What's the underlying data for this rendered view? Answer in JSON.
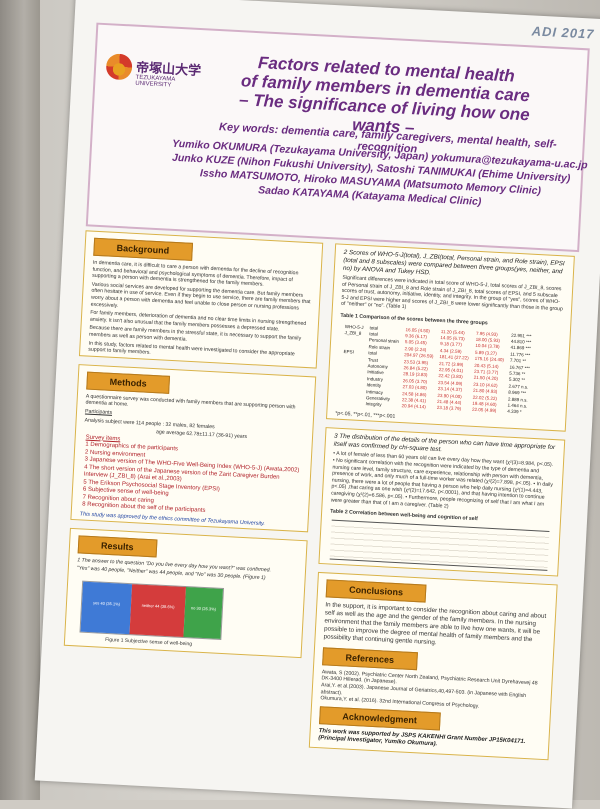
{
  "header": {
    "adi": "ADI 2017",
    "logo_jp": "帝塚山大学",
    "logo_en": "TEZUKAYAMA UNIVERSITY",
    "title_l1": "Factors related to mental health",
    "title_l2": "of family members in dementia care",
    "title_l3": "– The significance of living how one wants –",
    "keywords": "Key words: dementia care, family caregivers, mental health, self-recognition",
    "author_1": "Yumiko OKUMURA (Tezukayama University, Japan)  yokumura@tezukayama-u.ac.jp",
    "author_2": "Junko KUZE (Nihon Fukushi University), Satoshi TANIMUKAI (Ehime University)",
    "author_3": "Issho MATSUMOTO, Hiroko MASUYAMA (Matsumoto Memory Clinic)",
    "author_4": "Sadao KATAYAMA (Katayama Medical Clinic)"
  },
  "background": {
    "heading": "Background",
    "p1": "In dementia care, it is difficult to care a person with dementia for the decline of recognition function, and behavioral and psychological symptoms of dementia. Therefore, impact of supporting a person with dementia is strengthened for the family members.",
    "p2": "Various social services are developed for supporting the dementia care. But family members often hesitate in use of service. Even if they begin to use service, there are family members that worry about a person with dementia and feel unable to close person or nursing professions excessively.",
    "p3": "For family members, deterioration of dementia and no clear time limits in nursing strengthened anxiety. It isn't also unusual that the family members possesses a depressed state.",
    "p4": "Because there are family members in the stressful state, it is necessary to support the family members as well as person with dementia.",
    "p5": "In this study, factors related to mental health were investigated to consider the appropriate support to family members."
  },
  "methods": {
    "heading": "Methods",
    "p1": "A questionnaire survey was conducted with family members that are supporting person with dementia at home.",
    "participants": "Participants",
    "analysis": "Analysis subject were 114 people : 32 males, 82 females",
    "age": "age average 62.78±11.17 (36-91) years",
    "survey_items": "Survey items",
    "items": [
      "1 Demographics of the participants",
      "2 Nursing environment",
      "3 Japanese version of The WHO-Five Well-Being Index (WHO-5-J) (Awata,2002)",
      "4 The short version of the Japanese version of the Zarit Caregiver Burden Interview (J_ZBI_8) (Arai et al.,2003)",
      "5 The Erikson Psychosocial Stage Inventory (EPSI)",
      "6 Subjective sense of well-being",
      "7 Recognition about caring",
      "8 Recognition about the self of the participants"
    ],
    "ethics": "This study was approved by the ethics committee of Tezukayama University."
  },
  "results": {
    "heading": "Results",
    "q1": "1  The answer to the question \"Do you live every day how you want?\" was confirmed.",
    "q1b": "\"Yes\" was 40 people, \"Neither\" was 44 people, and \"No\" was 30 people. (Figure 1)",
    "figure_caption": "Figure 1   Subjective sense of well-being",
    "chart_segments": [
      {
        "label": "yes 40 (35.1%)",
        "value": 40,
        "color": "#3f7ad6"
      },
      {
        "label": "neither 44 (38.6%)",
        "value": 44,
        "color": "#d43c3c"
      },
      {
        "label": "no 30 (26.3%)",
        "value": 30,
        "color": "#3fa34a"
      }
    ]
  },
  "right": {
    "section2_title": "2  Scores of WHO-5-J(total), J_ZBI(total, Personal strain, and Role strain), EPSI (total and 8 subscales) were compared between three groups(yes, neither, and no) by ANOVA and Tukey HSD.",
    "section2_text": "Significant differences were indicated in total score of WHO-5-J, total scores of J_ZBI_8, scores of Personal strain of J_ZBI_8 and Role strain of J_ZBI_8, total scores of EPSI, and 5 subscale scores of trust, autonomy, initiative, identity, and integrity. In the group of \"yes\", scores of WHO-5-J and EPSI were higher and scores of J_ZBI_8 were lower significantly than those in the group of \"neither\" or \"no\". (Table 1)",
    "table1_caption": "Table 1  Comparison of the scores between the three groups",
    "table1_rows": [
      [
        "WHO-5-J",
        "total",
        "16.05 (4.50)",
        "11.20 (5.44)",
        "7.95 (4.93)",
        "22.951 ***"
      ],
      [
        "J_ZBI_8",
        "total",
        "9.36 (6.17)",
        "14.05 (6.73)",
        "18.00 (5.93)",
        "44.810 ***"
      ],
      [
        "",
        "Personal strain",
        "5.05 (3.45)",
        "9.18 (3.77)",
        "10.04 (3.78)",
        "41.869 ***"
      ],
      [
        "",
        "Role strain",
        "2.90 (2.24)",
        "4.34 (2.59)",
        "5.89 (3.27)",
        "11.776 ***"
      ],
      [
        "EPSI",
        "total",
        "204.97 (26.59)",
        "181.41 (27.22)",
        "175.16 (24.40)",
        "7.701 **"
      ],
      [
        "",
        "Trust",
        "23.53 (3.95)",
        "21.72 (3.99)",
        "20.43 (5.14)",
        "16.767 ***"
      ],
      [
        "",
        "Autonomy",
        "26.84 (5.22)",
        "22.95 (4.01)",
        "23.71 (3.77)",
        "5.736 **"
      ],
      [
        "",
        "Initiative",
        "28.19 (3.83)",
        "22.42 (3.83)",
        "21.50 (4.20)",
        "5.302 **"
      ],
      [
        "",
        "Industry",
        "26.05 (3.70)",
        "23.54 (4.09)",
        "23.10 (4.62)",
        "2.677 n.s."
      ],
      [
        "",
        "Identity",
        "27.03 (4.80)",
        "23.14 (4.37)",
        "21.80 (4.93)",
        "8.969 ***"
      ],
      [
        "",
        "Intimacy",
        "24.58 (4.86)",
        "23.90 (4.00)",
        "22.02 (5.22)",
        "2.889 n.s."
      ],
      [
        "",
        "Generativity",
        "22.38 (4.41)",
        "21.48 (4.44)",
        "19.48 (4.60)",
        "1.464 n.s."
      ],
      [
        "",
        "Integrity",
        "20.94 (4.14)",
        "23.18 (3.79)",
        "22.05 (4.99)",
        "4.339 *"
      ]
    ],
    "table1_note": "*p<.05, **p<.01, ***p<.001",
    "section3_title": "3  The distribution of the details of the person who can have time appropriate for itself was confirmed by chi-square test.",
    "section3_text": "• A lot of female of less than 60 years old can live every day how they want (χ²(3)=8.984, p<.05).  • No significant correlation with the recognition were indicated by the type of dementia and nursing care level, family structure, care experience, relationship with person with dementia, presence of work, and only much of a full-time worker was related (χ²(2)=7.898, p<.05).  • In daily nursing, there were a lot of people that having a person who help daily nursing (χ²(1)=4.443, p<.05) ,that caring as one wish (χ²(2)=17.642, p<.0001), and that having intention to continue caregiving (χ²(2)=6.586, p<.05).  • Furthermore, people recognizing of self that I am what I am were greater than that of I am a caregiver. (Table 2)",
    "table2_caption": "Table 2  Correlation between well-being and cognition of self",
    "conclusions_heading": "Conclusions",
    "conclusions_text": "In the support, it is important to consider the recognition about caring and about self as well as the age and the gender of the family members. In the nursing environment that the family members are able to live how one wants, it will be possible to improve the degree of mental health of family members and the possibility that continuing gentle nursing.",
    "references_heading": "References",
    "references": [
      "Awata, S (2002). Psychiatric Center North Zealand, Psychiatric Research Unit Dyrehavevej 48 DK-3400 Hillerød. (in Japanese).",
      "Arai,Y. et al.(2003). Japanese Journal of Geriatrics,40,497-503. (in Japanese with English abstract).",
      "Okumura,Y. et al. (2016). 32nd International Congress of Psychology."
    ],
    "ack_heading": "Acknowledgment",
    "ack_text": "This work was supported by JSPS KAKENHI Grant Number JP15K04171. (Principal Investigator, Yumiko Okumura)."
  }
}
